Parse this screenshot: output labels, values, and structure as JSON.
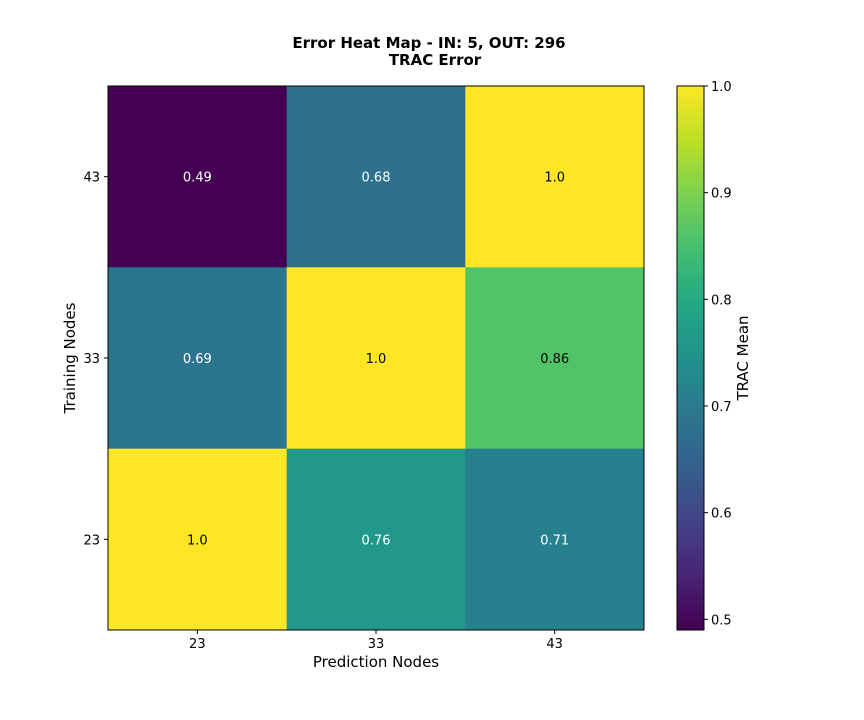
{
  "chart_data": {
    "type": "heatmap",
    "title": "Error Heat Map - IN: 5, OUT: 296",
    "subtitle": "TRAC Error",
    "xlabel": "Prediction Nodes",
    "ylabel": "Training Nodes",
    "x_categories": [
      "23",
      "33",
      "43"
    ],
    "y_categories": [
      "43",
      "33",
      "23"
    ],
    "values": [
      [
        0.49,
        0.68,
        1.0
      ],
      [
        0.69,
        1.0,
        0.86
      ],
      [
        1.0,
        0.76,
        0.71
      ]
    ],
    "cell_labels": [
      [
        "0.49",
        "0.68",
        "1.0"
      ],
      [
        "0.69",
        "1.0",
        "0.86"
      ],
      [
        "1.0",
        "0.76",
        "0.71"
      ]
    ],
    "colorbar": {
      "label": "TRAC Mean",
      "range": [
        0.49,
        1.0
      ],
      "ticks": [
        "0.5",
        "0.6",
        "0.7",
        "0.8",
        "0.9",
        "1.0"
      ],
      "colormap": "viridis"
    }
  }
}
